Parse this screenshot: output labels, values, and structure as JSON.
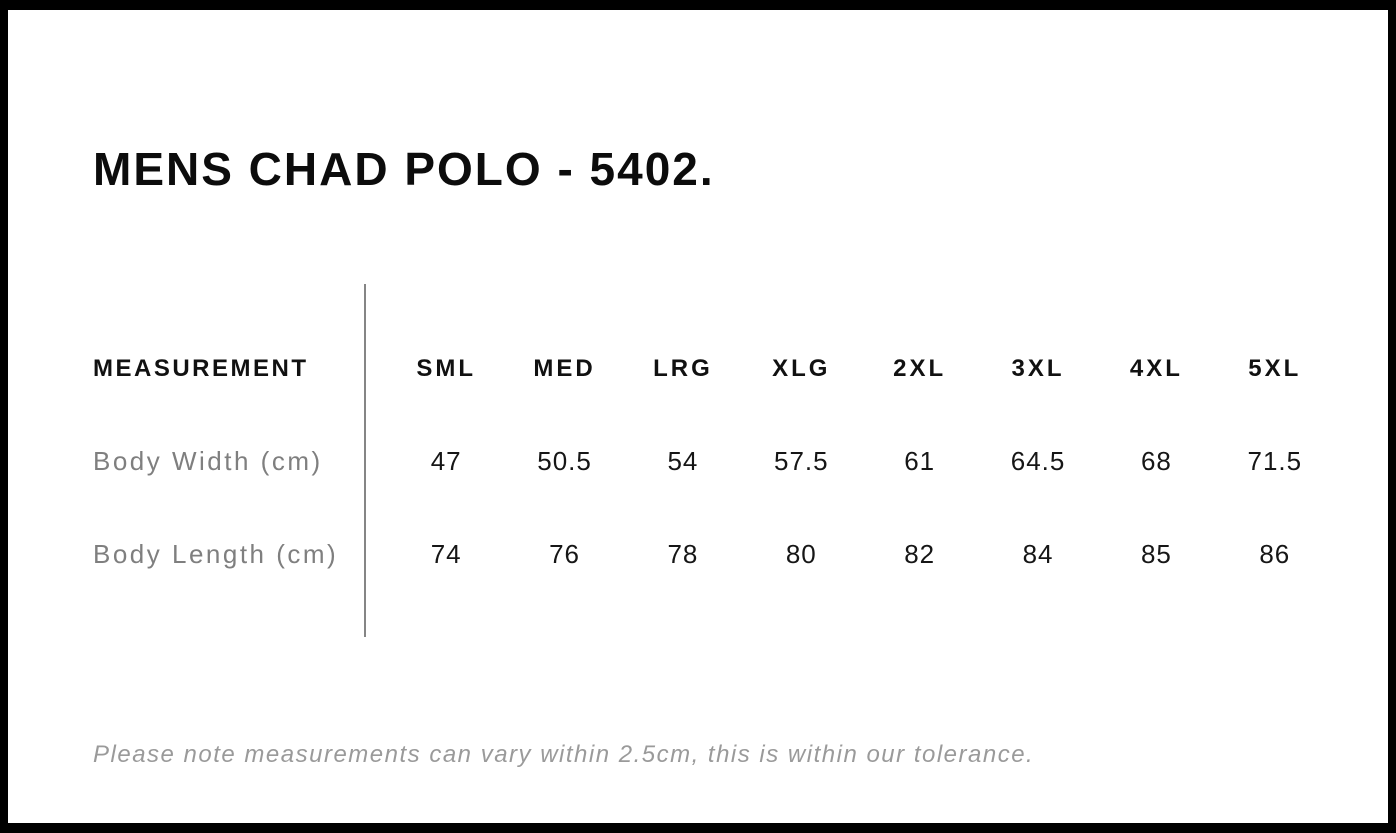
{
  "chart_data": {
    "type": "table",
    "title": "MENS CHAD POLO - 5402.",
    "measurement_header": "MEASUREMENT",
    "sizes": [
      "SML",
      "MED",
      "LRG",
      "XLG",
      "2XL",
      "3XL",
      "4XL",
      "5XL"
    ],
    "rows": [
      {
        "label": "Body Width (cm)",
        "values": [
          47,
          50.5,
          54,
          57.5,
          61,
          64.5,
          68,
          71.5
        ]
      },
      {
        "label": "Body Length (cm)",
        "values": [
          74,
          76,
          78,
          80,
          82,
          84,
          85,
          86
        ]
      }
    ],
    "note": "Please note measurements can vary within 2.5cm, this is within our tolerance."
  },
  "colors": {
    "background": "#ffffff",
    "frame": "#000000",
    "heading_text": "#0c0c0c",
    "table_text": "#161616",
    "muted_label": "#7f7f7f",
    "note_text": "#9a9a9a",
    "divider": "#858585"
  }
}
